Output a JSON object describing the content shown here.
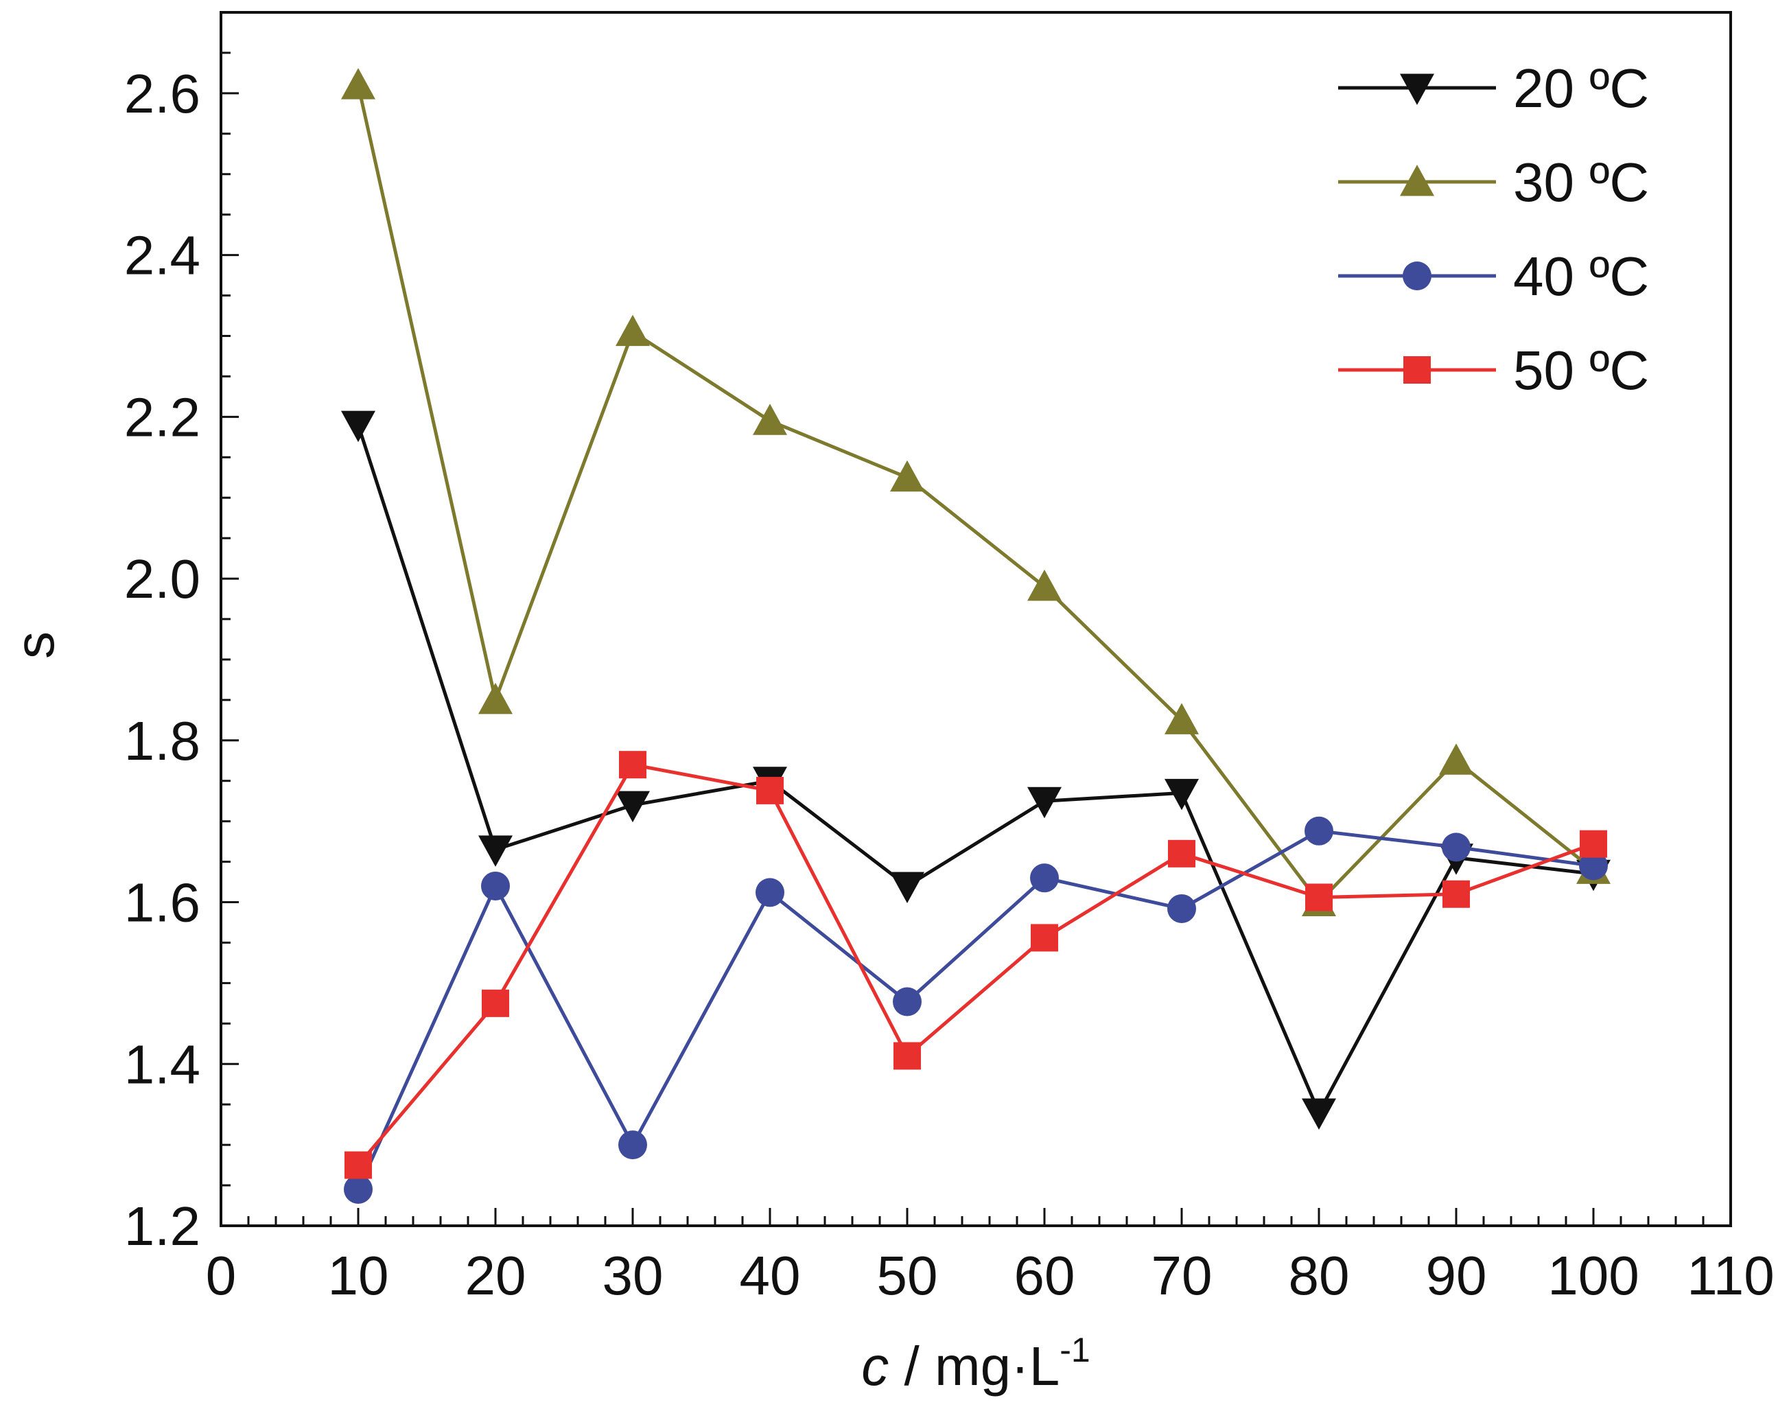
{
  "chart_data": {
    "type": "line",
    "xlabel_italic": "c",
    "xlabel_rest": " / mg·L",
    "xlabel_sup": "-1",
    "ylabel": "s",
    "xlim": [
      0,
      110
    ],
    "ylim": [
      1.2,
      2.7
    ],
    "x_ticks": [
      "0",
      "10",
      "20",
      "30",
      "40",
      "50",
      "60",
      "70",
      "80",
      "90",
      "100",
      "110"
    ],
    "y_ticks": [
      "1.2",
      "1.4",
      "1.6",
      "1.8",
      "2.0",
      "2.2",
      "2.4",
      "2.6"
    ],
    "legend_position": "top-right",
    "x": [
      10,
      20,
      30,
      40,
      50,
      60,
      70,
      80,
      90,
      100
    ],
    "series": [
      {
        "name": "20 ºC",
        "color": "#111111",
        "marker": "triangle-down",
        "values": [
          2.19,
          1.665,
          1.72,
          1.75,
          1.62,
          1.725,
          1.735,
          1.34,
          1.655,
          1.635
        ]
      },
      {
        "name": "30 ºC",
        "color": "#7d7a2d",
        "marker": "triangle-up",
        "values": [
          2.61,
          1.85,
          2.305,
          2.195,
          2.125,
          1.99,
          1.825,
          1.6,
          1.775,
          1.64
        ]
      },
      {
        "name": "40 ºC",
        "color": "#3e4b9a",
        "marker": "circle",
        "values": [
          1.245,
          1.62,
          1.3,
          1.612,
          1.477,
          1.63,
          1.592,
          1.688,
          1.668,
          1.645
        ]
      },
      {
        "name": "50 ºC",
        "color": "#e8302f",
        "marker": "square",
        "values": [
          1.275,
          1.475,
          1.77,
          1.738,
          1.41,
          1.556,
          1.66,
          1.606,
          1.61,
          1.672
        ]
      }
    ]
  }
}
